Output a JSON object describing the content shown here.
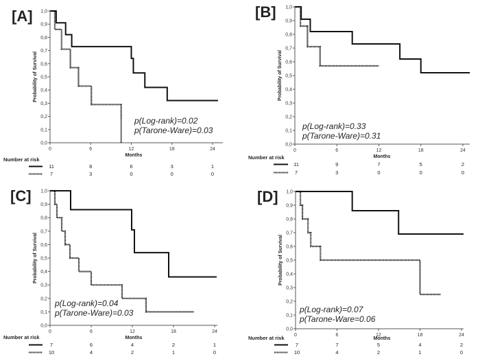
{
  "chart_data": [
    {
      "type": "line",
      "panel_label": "[A]",
      "xlabel": "Months",
      "ylabel": "Probability of Survival",
      "xlim": [
        0,
        24
      ],
      "ylim": [
        0,
        1.0
      ],
      "xticks": [
        "0",
        "6",
        "12",
        "18",
        "24"
      ],
      "yticks": [
        "0,0",
        "0,1",
        "0,2",
        "0,3",
        "0,4",
        "0,5",
        "0,6",
        "0,7",
        "0,8",
        "0,9",
        "1,0"
      ],
      "pvalues": [
        "p(Log-rank)=0.02",
        "p(Tarone-Ware)=0.03"
      ],
      "series": [
        {
          "style": "solid",
          "x": [
            0,
            0.9,
            2.3,
            3.2,
            12.0,
            12.3,
            14.0,
            17.3,
            24.8
          ],
          "y": [
            1.0,
            0.91,
            0.82,
            0.73,
            0.64,
            0.53,
            0.42,
            0.32,
            0.32
          ]
        },
        {
          "style": "dotted",
          "x": [
            0,
            0.7,
            1.7,
            3.0,
            4.2,
            6.1,
            10.5
          ],
          "y": [
            1.0,
            0.86,
            0.71,
            0.57,
            0.43,
            0.29,
            0.0
          ]
        }
      ],
      "risk_table": {
        "title": "Number at risk",
        "rows": [
          [
            "11",
            "8",
            "6",
            "3",
            "1"
          ],
          [
            "7",
            "3",
            "0",
            "0",
            "0"
          ]
        ]
      }
    },
    {
      "type": "line",
      "panel_label": "[B]",
      "xlabel": "Months",
      "ylabel": "Probability of Survival",
      "xlim": [
        0,
        24
      ],
      "ylim": [
        0,
        1.0
      ],
      "xticks": [
        "0",
        "6",
        "12",
        "18",
        "24"
      ],
      "yticks": [
        "0,0",
        "0,1",
        "0,2",
        "0,3",
        "0,4",
        "0,5",
        "0,6",
        "0,7",
        "0,8",
        "0,9",
        "1,0"
      ],
      "pvalues": [
        "p(Log-rank)=0.33",
        "p(Tarone-Ware)=0.31"
      ],
      "series": [
        {
          "style": "solid",
          "x": [
            0,
            0.9,
            2.2,
            8.2,
            15.0,
            18.0,
            25.0
          ],
          "y": [
            1.0,
            0.91,
            0.82,
            0.73,
            0.62,
            0.52,
            0.52
          ]
        },
        {
          "style": "dotted",
          "x": [
            0,
            0.8,
            1.8,
            3.6,
            12.0
          ],
          "y": [
            1.0,
            0.86,
            0.71,
            0.57,
            0.57
          ]
        }
      ],
      "risk_table": {
        "title": "Number at risk",
        "rows": [
          [
            "11",
            "9",
            "7",
            "5",
            "2"
          ],
          [
            "7",
            "3",
            "0",
            "0",
            "0"
          ]
        ]
      }
    },
    {
      "type": "line",
      "panel_label": "[C]",
      "xlabel": "Months",
      "ylabel": "Probability of Survival",
      "xlim": [
        0,
        24
      ],
      "ylim": [
        0,
        1.0
      ],
      "xticks": [
        "0",
        "6",
        "12",
        "18",
        "24"
      ],
      "yticks": [
        "0,0",
        "0,1",
        "0,2",
        "0,3",
        "0,4",
        "0,5",
        "0,6",
        "0,7",
        "0,8",
        "0,9",
        "1,0"
      ],
      "pvalues": [
        "p(Log-rank)=0.04",
        "p(Tarone-Ware)=0.03"
      ],
      "series": [
        {
          "style": "solid",
          "x": [
            0,
            3.0,
            11.9,
            12.3,
            17.3,
            24.3
          ],
          "y": [
            1.0,
            0.86,
            0.71,
            0.54,
            0.36,
            0.36
          ]
        },
        {
          "style": "dotted",
          "x": [
            0,
            0.7,
            1.0,
            1.7,
            2.2,
            2.9,
            4.2,
            6.0,
            10.5,
            14.0,
            21.0
          ],
          "y": [
            1.0,
            0.9,
            0.8,
            0.7,
            0.6,
            0.5,
            0.4,
            0.3,
            0.2,
            0.1,
            0.1
          ]
        }
      ],
      "risk_table": {
        "title": "Number at risk",
        "rows": [
          [
            "7",
            "6",
            "4",
            "2",
            "1"
          ],
          [
            "10",
            "4",
            "2",
            "1",
            "0"
          ]
        ]
      }
    },
    {
      "type": "line",
      "panel_label": "[D]",
      "xlabel": "Months",
      "ylabel": "Probability of Survival",
      "xlim": [
        0,
        24
      ],
      "ylim": [
        0,
        1.0
      ],
      "xticks": [
        "0",
        "6",
        "12",
        "18",
        "24"
      ],
      "yticks": [
        "0,0",
        "0,1",
        "0,2",
        "0,3",
        "0,4",
        "0,5",
        "0,6",
        "0,7",
        "0,8",
        "0,9",
        "1,0"
      ],
      "pvalues": [
        "p(Log-rank)=0.07",
        "p(Tarone-Ware=0.06"
      ],
      "series": [
        {
          "style": "solid",
          "x": [
            0,
            8.2,
            14.9,
            24.3
          ],
          "y": [
            1.0,
            0.86,
            0.69,
            0.69
          ]
        },
        {
          "style": "dotted",
          "x": [
            0,
            0.7,
            1.0,
            1.8,
            2.2,
            3.6,
            18.0,
            21.0
          ],
          "y": [
            1.0,
            0.9,
            0.8,
            0.7,
            0.6,
            0.5,
            0.25,
            0.25
          ]
        }
      ],
      "risk_table": {
        "title": "Number at risk",
        "rows": [
          [
            "7",
            "7",
            "5",
            "4",
            "2"
          ],
          [
            "10",
            "4",
            "2",
            "1",
            "0"
          ]
        ]
      }
    }
  ]
}
